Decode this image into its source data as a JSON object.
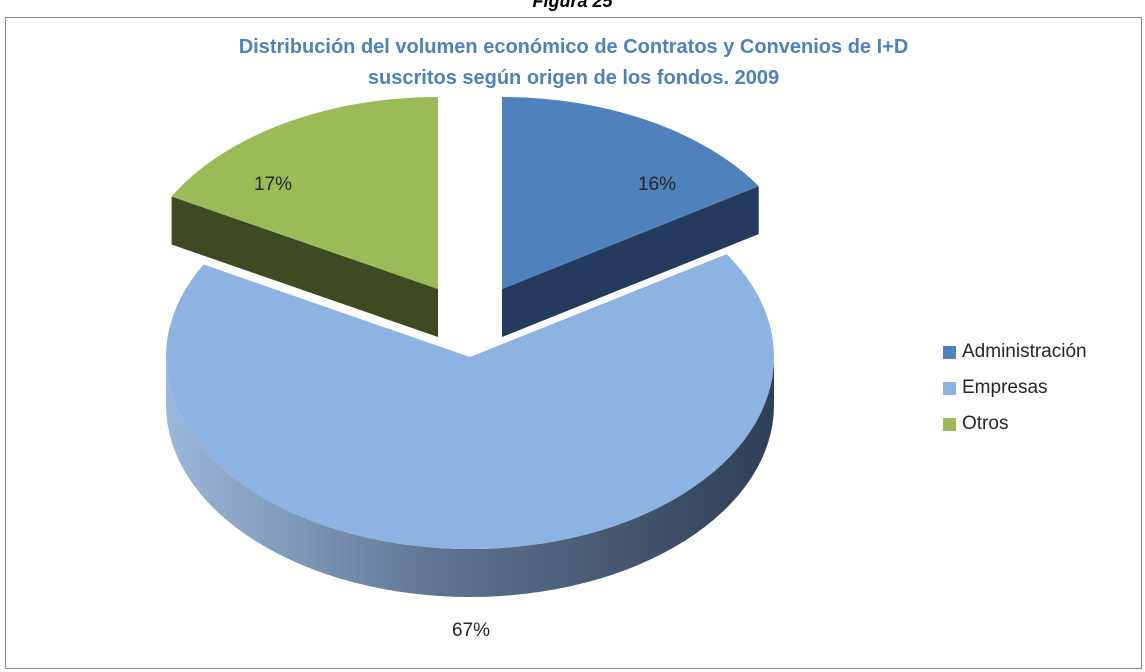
{
  "figure_caption": "Figura 25",
  "chart_data": {
    "type": "pie",
    "title_line1": "Distribución del volumen económico de Contratos y Convenios de I+D",
    "title_line2": "suscritos según origen de los fondos. 2009",
    "categories": [
      "Administración",
      "Empresas",
      "Otros"
    ],
    "values": [
      16,
      67,
      17
    ],
    "data_labels": [
      "16%",
      "67%",
      "17%"
    ],
    "colors": [
      "#4f81bd",
      "#8db3e2",
      "#9bbb59"
    ],
    "side_colors": [
      "#243a5e",
      "#425a78",
      "#3f4a22"
    ],
    "exploded": true,
    "style": "3d",
    "legend_position": "right"
  }
}
